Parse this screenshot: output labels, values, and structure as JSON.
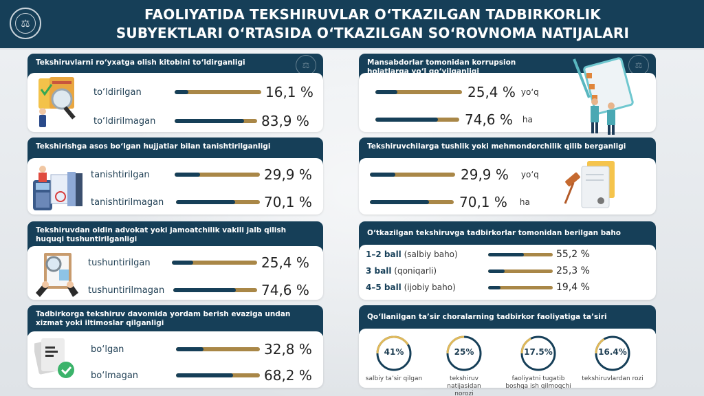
{
  "header": {
    "title_line1": "FAOLIYATIDA TEKSHIRUVLAR O‘TKAZILGAN TADBIRKORLIK",
    "title_line2": "SUBYEKTLARI O‘RTASIDA O‘TKAZILGAN SO‘ROVNOMA NATIJALARI",
    "logo_icon": "emblem-seal-icon"
  },
  "colors": {
    "primary": "#163f58",
    "accent": "#a98747",
    "background": "#e6e9ec"
  },
  "chart_data": [
    {
      "type": "bar",
      "title": "Tekshiruvlarni ro‘yxatga olish kitobini to‘ldirganligi",
      "categories": [
        "to‘ldirilgan",
        "to‘ldirilmagan"
      ],
      "values": [
        16.1,
        83.9
      ],
      "value_labels": [
        "16,1 %",
        "83,9 %"
      ],
      "unit": "%",
      "ylim": [
        0,
        100
      ]
    },
    {
      "type": "bar",
      "title": "Tekshirishga asos bo‘lgan hujjatlar bilan tanishtirilganligi",
      "categories": [
        "tanishtirilgan",
        "tanishtirilmagan"
      ],
      "values": [
        29.9,
        70.1
      ],
      "value_labels": [
        "29,9 %",
        "70,1 %"
      ],
      "unit": "%",
      "ylim": [
        0,
        100
      ]
    },
    {
      "type": "bar",
      "title": "Tekshiruvdan oldin advokat yoki jamoatchilik vakili jalb qilish huquqi tushuntirilganligi",
      "categories": [
        "tushuntirilgan",
        "tushuntirilmagan"
      ],
      "values": [
        25.4,
        74.6
      ],
      "value_labels": [
        "25,4 %",
        "74,6 %"
      ],
      "unit": "%",
      "ylim": [
        0,
        100
      ]
    },
    {
      "type": "bar",
      "title": "Tadbirkorga tekshiruv davomida yordam berish evaziga undan xizmat yoki iltimoslar qilganligi",
      "categories": [
        "bo‘lgan",
        "bo‘lmagan"
      ],
      "values": [
        32.8,
        68.2
      ],
      "value_labels": [
        "32,8 %",
        "68,2 %"
      ],
      "unit": "%",
      "ylim": [
        0,
        100
      ]
    },
    {
      "type": "bar",
      "title": "Mansabdorlar tomonidan korrupsion holatlarga yo‘l qo‘yilganligi",
      "categories": [
        "yo‘q",
        "ha"
      ],
      "values": [
        25.4,
        74.6
      ],
      "value_labels": [
        "25,4 %",
        "74,6 %"
      ],
      "unit": "%",
      "ylim": [
        0,
        100
      ]
    },
    {
      "type": "bar",
      "title": "Tekshiruvchilarga tushlik yoki mehmondorchilik qilib berganligi",
      "categories": [
        "yo‘q",
        "ha"
      ],
      "values": [
        29.9,
        70.1
      ],
      "value_labels": [
        "29,9 %",
        "70,1 %"
      ],
      "unit": "%",
      "ylim": [
        0,
        100
      ]
    },
    {
      "type": "bar",
      "title": "O‘tkazilgan tekshiruvga tadbirkorlar tomonidan berilgan baho",
      "categories": [
        {
          "bold": "1–2 ball",
          "rest": " (salbiy baho)"
        },
        {
          "bold": "3 ball",
          "rest": " (qoniqarli)"
        },
        {
          "bold": "4–5 ball",
          "rest": " (ijobiy baho)"
        }
      ],
      "values": [
        55.2,
        25.3,
        19.4
      ],
      "value_labels": [
        "55,2 %",
        "25,3 %",
        "19,4 %"
      ],
      "unit": "%",
      "ylim": [
        0,
        100
      ]
    },
    {
      "type": "pie",
      "title": "Qo‘llanilgan ta’sir choralarning tadbirkor faoliyatiga ta’siri",
      "categories": [
        "salbiy ta’sir qilgan",
        "tekshiruv natijasidan norozi",
        "faoliyatni tugatib boshqa ish qilmoqchi",
        "tekshiruvlardan rozi"
      ],
      "values": [
        41,
        25,
        17.5,
        16.4
      ],
      "value_labels": [
        "41%",
        "25%",
        "17.5%",
        "16.4%"
      ],
      "unit": "%"
    }
  ]
}
